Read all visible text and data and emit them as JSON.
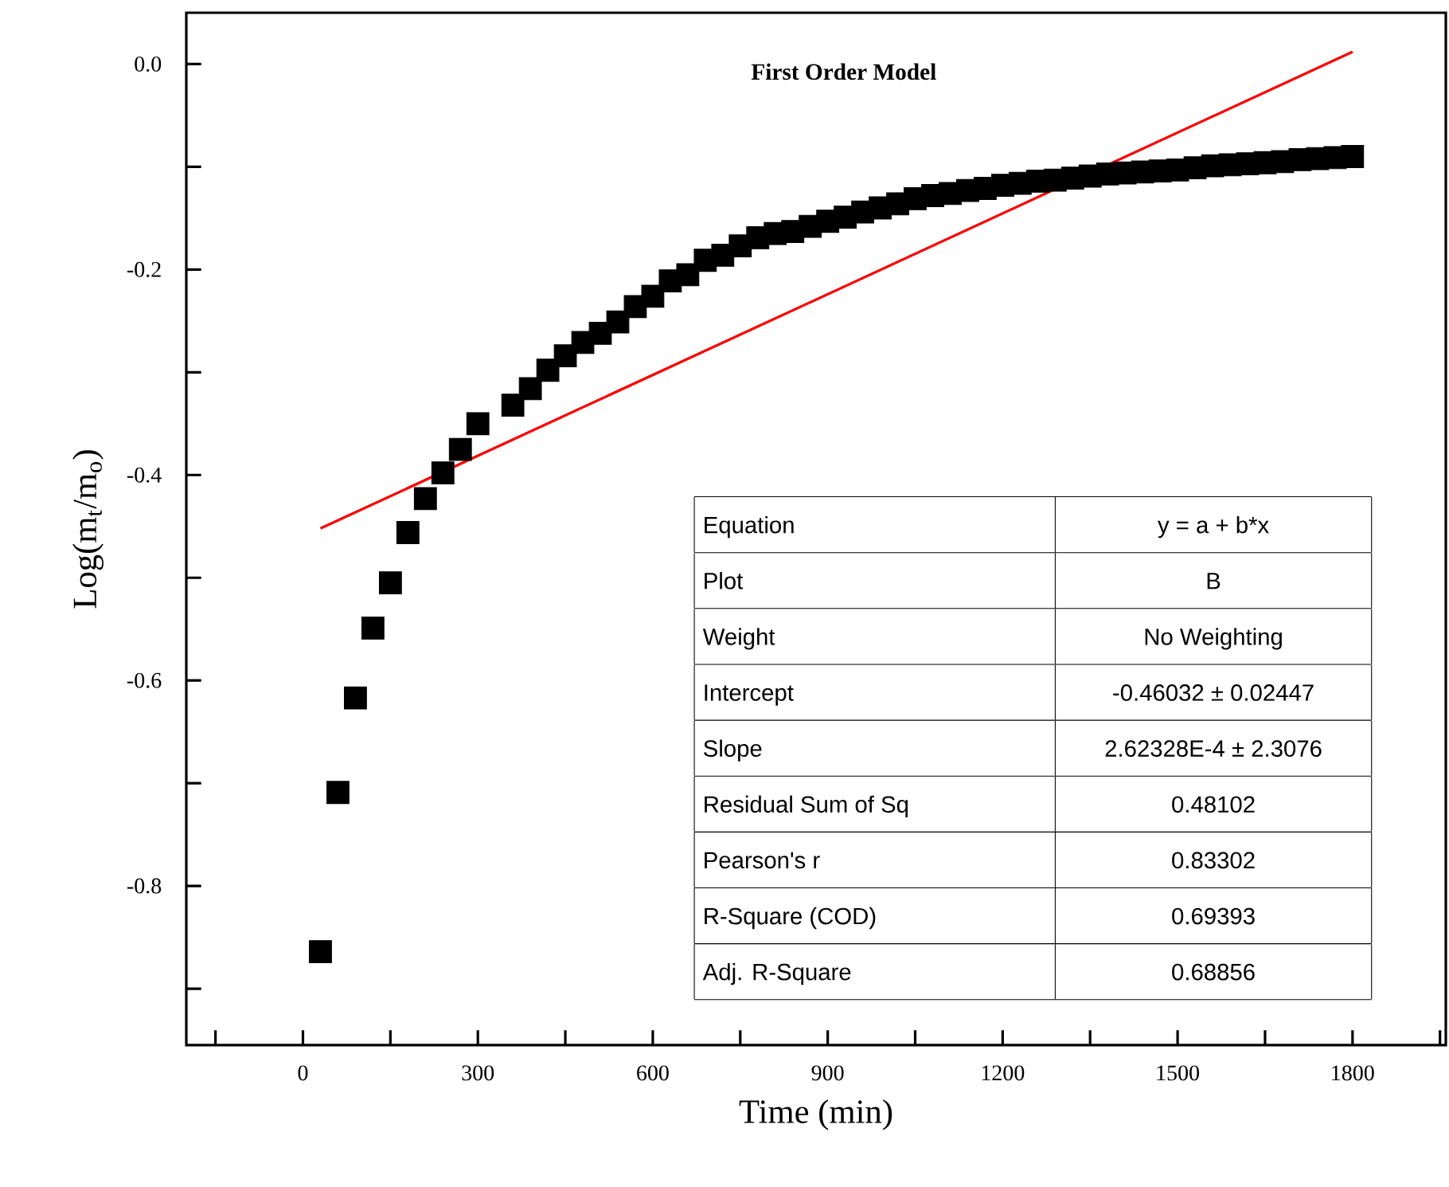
{
  "chart_data": {
    "type": "scatter",
    "title": "First Order Model",
    "xlabel": "Time (min)",
    "ylabel": "Log(m$_{t}$/m$_{o}$)",
    "xlim": [
      -200,
      1960
    ],
    "ylim": [
      -0.955,
      0.05
    ],
    "xticks": [
      {
        "value": -150,
        "label": null
      },
      0,
      {
        "value": 150,
        "label": null
      },
      300,
      {
        "value": 450,
        "label": null
      },
      600,
      {
        "value": 750,
        "label": null
      },
      900,
      {
        "value": 1050,
        "label": null
      },
      1200,
      {
        "value": 1350,
        "label": null
      },
      1500,
      {
        "value": 1650,
        "label": null
      },
      1800,
      {
        "value": 1950,
        "label": null
      }
    ],
    "yticks": [
      {
        "value": -0.9,
        "label": null
      },
      -0.8,
      {
        "value": -0.7,
        "label": null
      },
      -0.6,
      {
        "value": -0.5,
        "label": null
      },
      -0.4,
      {
        "value": -0.3,
        "label": null
      },
      -0.2,
      {
        "value": -0.1,
        "label": null
      },
      {
        "value": 0,
        "label": "0.0"
      }
    ],
    "series": [
      {
        "marker": "square",
        "color": "#000000",
        "x": [
          30,
          60,
          90,
          120,
          150,
          180,
          210,
          240,
          270,
          300,
          360,
          390,
          420,
          450,
          480,
          510,
          540,
          570,
          600,
          630,
          660,
          690,
          720,
          750,
          780,
          810,
          840,
          870,
          900,
          930,
          960,
          990,
          1020,
          1050,
          1080,
          1110,
          1140,
          1170,
          1200,
          1230,
          1260,
          1290,
          1320,
          1350,
          1380,
          1410,
          1440,
          1470,
          1500,
          1530,
          1560,
          1590,
          1620,
          1650,
          1680,
          1710,
          1740,
          1770,
          1800
        ],
        "values": [
          -0.864,
          -0.709,
          -0.617,
          -0.549,
          -0.505,
          -0.456,
          -0.423,
          -0.398,
          -0.375,
          -0.35,
          -0.332,
          -0.316,
          -0.298,
          -0.284,
          -0.271,
          -0.262,
          -0.251,
          -0.236,
          -0.226,
          -0.211,
          -0.205,
          -0.191,
          -0.186,
          -0.177,
          -0.169,
          -0.165,
          -0.163,
          -0.158,
          -0.153,
          -0.149,
          -0.144,
          -0.14,
          -0.136,
          -0.131,
          -0.128,
          -0.126,
          -0.123,
          -0.121,
          -0.118,
          -0.116,
          -0.114,
          -0.113,
          -0.111,
          -0.109,
          -0.107,
          -0.106,
          -0.105,
          -0.104,
          -0.103,
          -0.101,
          -0.099,
          -0.098,
          -0.097,
          -0.096,
          -0.095,
          -0.093,
          -0.092,
          -0.091,
          -0.09
        ]
      },
      {
        "type": "line",
        "marker": "none",
        "color": "#ff0000",
        "x": [
          30,
          1800
        ],
        "values": [
          -0.452,
          0.012
        ]
      }
    ],
    "annotations": [
      "Equation",
      "y = a + b*x",
      "Plot",
      "B",
      "Weight",
      "No Weighting",
      "Intercept",
      "-0.46032 ± 0.02447",
      "Slope",
      "2.62328E-4 ± 2.3076",
      "Residual Sum of Sq",
      "0.48102",
      "Pearson's r",
      "0.83302",
      "R-Square (COD)",
      "0.69393",
      "Adj. R-Square",
      "0.68856"
    ]
  }
}
